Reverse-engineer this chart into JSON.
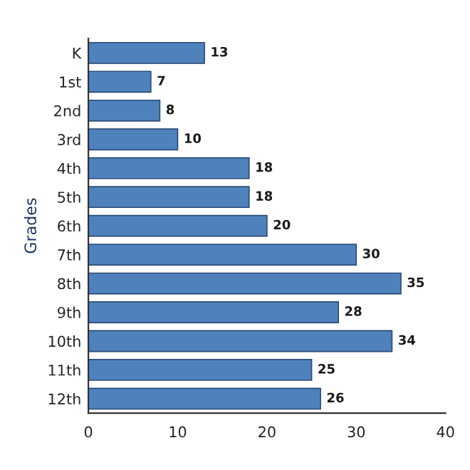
{
  "chart_data": {
    "type": "bar",
    "orientation": "horizontal",
    "ylabel": "Grades",
    "categories": [
      "K",
      "1st",
      "2nd",
      "3rd",
      "4th",
      "5th",
      "6th",
      "7th",
      "8th",
      "9th",
      "10th",
      "11th",
      "12th"
    ],
    "values": [
      13,
      7,
      8,
      10,
      18,
      18,
      20,
      30,
      35,
      28,
      34,
      25,
      26
    ],
    "color": "#4f81bd",
    "xlim": [
      0,
      40
    ],
    "xticks": [
      0,
      10,
      20,
      30,
      40
    ],
    "data_labels": true,
    "grid": false,
    "legend": false
  }
}
